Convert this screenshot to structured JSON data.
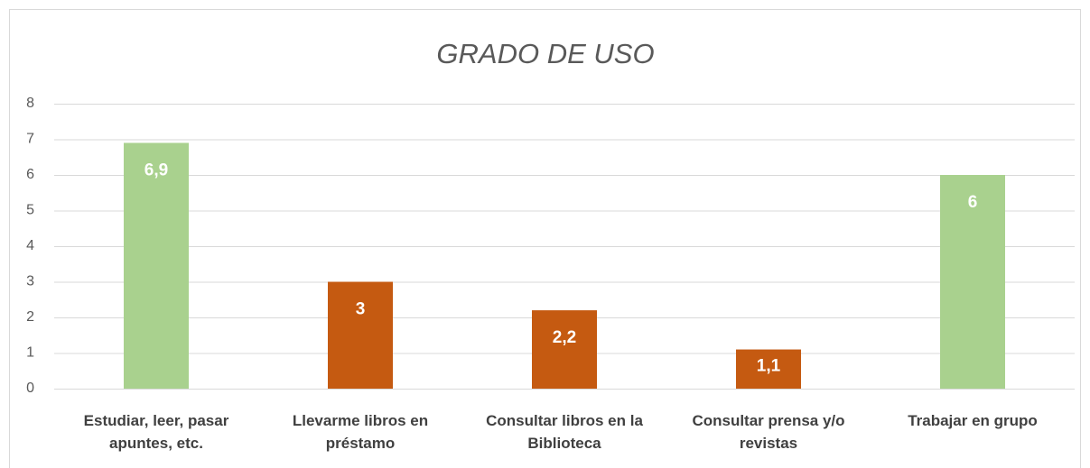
{
  "chart_data": {
    "type": "bar",
    "title": "GRADO DE USO",
    "categories": [
      "Estudiar, leer, pasar apuntes, etc.",
      "Llevarme libros en préstamo",
      "Consultar libros en la Biblioteca",
      "Consultar prensa y/o revistas",
      "Trabajar en grupo"
    ],
    "values": [
      6.9,
      3,
      2.2,
      1.1,
      6
    ],
    "value_labels": [
      "6,9",
      "3",
      "2,2",
      "1,1",
      "6"
    ],
    "colors": [
      "#a9d18e",
      "#c55a11",
      "#c55a11",
      "#c55a11",
      "#a9d18e"
    ],
    "ylim": [
      0,
      8
    ],
    "yticks": [
      0,
      1,
      2,
      3,
      4,
      5,
      6,
      7,
      8
    ],
    "grid": true
  }
}
